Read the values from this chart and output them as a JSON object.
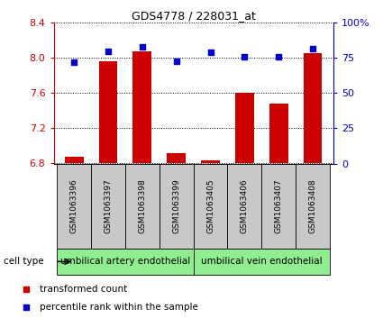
{
  "title": "GDS4778 / 228031_at",
  "samples": [
    "GSM1063396",
    "GSM1063397",
    "GSM1063398",
    "GSM1063399",
    "GSM1063405",
    "GSM1063406",
    "GSM1063407",
    "GSM1063408"
  ],
  "red_values": [
    6.88,
    7.96,
    8.08,
    6.92,
    6.84,
    7.6,
    7.48,
    8.06
  ],
  "blue_values": [
    72,
    80,
    83,
    73,
    79,
    76,
    76,
    82
  ],
  "ylim_left": [
    6.8,
    8.4
  ],
  "yticks_left": [
    6.8,
    7.2,
    7.6,
    8.0,
    8.4
  ],
  "ylim_right": [
    0,
    100
  ],
  "yticks_right": [
    0,
    25,
    50,
    75,
    100
  ],
  "ytick_labels_right": [
    "0",
    "25",
    "50",
    "75",
    "100%"
  ],
  "cell_types": [
    {
      "label": "umbilical artery endothelial",
      "start": 0,
      "end": 3
    },
    {
      "label": "umbilical vein endothelial",
      "start": 4,
      "end": 7
    }
  ],
  "cell_type_label": "cell type",
  "legend_red": "transformed count",
  "legend_blue": "percentile rank within the sample",
  "bar_color": "#CC0000",
  "dot_color": "#0000CC",
  "bar_bottom": 6.8,
  "grid_color": "#000000",
  "bg_color": "#FFFFFF",
  "cell_type_bg": "#90EE90",
  "sample_bg": "#C8C8C8",
  "fig_width": 4.25,
  "fig_height": 3.63
}
